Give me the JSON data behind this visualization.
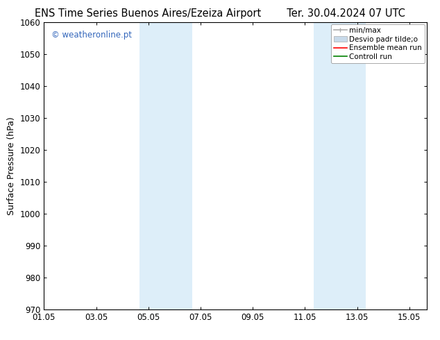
{
  "title_left": "ENS Time Series Buenos Aires/Ezeiza Airport",
  "title_right": "Ter. 30.04.2024 07 UTC",
  "ylabel": "Surface Pressure (hPa)",
  "ylim": [
    970,
    1060
  ],
  "yticks": [
    970,
    980,
    990,
    1000,
    1010,
    1020,
    1030,
    1040,
    1050,
    1060
  ],
  "xlim_start": 0.0,
  "xlim_end": 14.67,
  "xtick_labels": [
    "01.05",
    "03.05",
    "05.05",
    "07.05",
    "09.05",
    "11.05",
    "13.05",
    "15.05"
  ],
  "xtick_positions": [
    0,
    2,
    4,
    6,
    8,
    10,
    12,
    14
  ],
  "shaded_regions": [
    {
      "xmin": 3.67,
      "xmax": 5.67,
      "color": "#ddeef9"
    },
    {
      "xmin": 10.33,
      "xmax": 12.33,
      "color": "#ddeef9"
    }
  ],
  "watermark": "© weatheronline.pt",
  "watermark_color": "#3366bb",
  "legend_labels": [
    "min/max",
    "Desvio padr tilde;o",
    "Ensemble mean run",
    "Controll run"
  ],
  "legend_colors": [
    "#aaaaaa",
    "#c8daea",
    "red",
    "green"
  ],
  "bg_color": "#ffffff",
  "title_fontsize": 10.5,
  "tick_fontsize": 8.5,
  "label_fontsize": 9,
  "watermark_fontsize": 8.5
}
